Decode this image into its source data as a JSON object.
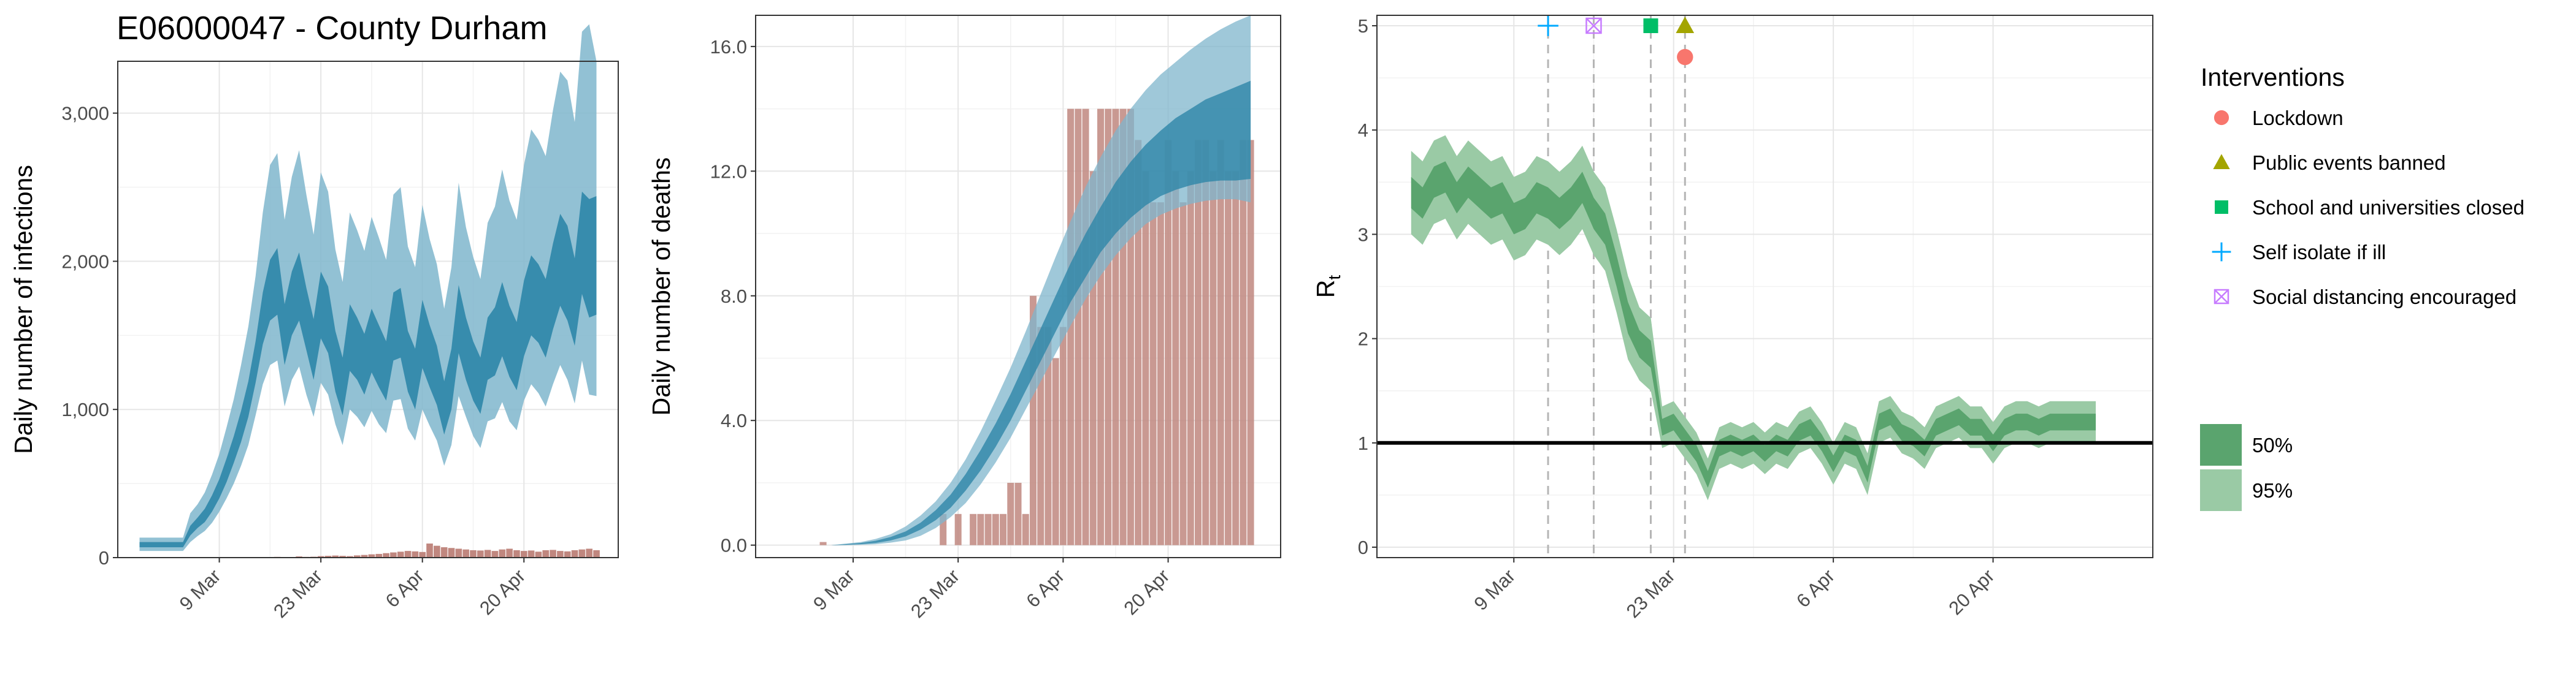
{
  "title": "E06000047 - County Durham",
  "chart_data": [
    {
      "type": "area",
      "ylabel": "Daily number of infections",
      "ylim": [
        0,
        3350
      ],
      "y_ticks": [
        "0",
        "1,000",
        "2,000",
        "3,000"
      ],
      "y_tick_values": [
        0,
        1000,
        2000,
        3000
      ],
      "x_tick_labels": [
        "9 Mar",
        "23 Mar",
        "6 Apr",
        "20 Apr"
      ],
      "x_tick_days": [
        9,
        23,
        37,
        51
      ],
      "xlim": [
        -5,
        64
      ],
      "grid": true,
      "colors": {
        "band95": "#7fb6cc",
        "band50": "#2e86a8",
        "bars": "#c0877f"
      },
      "days": [
        -2,
        -1,
        0,
        1,
        2,
        3,
        4,
        5,
        6,
        7,
        8,
        9,
        10,
        11,
        12,
        13,
        14,
        15,
        16,
        17,
        18,
        19,
        20,
        21,
        22,
        23,
        24,
        25,
        26,
        27,
        28,
        29,
        30,
        31,
        32,
        33,
        34,
        35,
        36,
        37,
        38,
        39,
        40,
        41,
        42,
        43,
        44,
        45,
        46,
        47,
        48,
        49,
        50,
        51,
        52,
        53,
        54,
        55,
        56,
        57,
        58,
        59,
        60,
        61
      ],
      "median": [
        85,
        85,
        85,
        85,
        85,
        85,
        85,
        180,
        230,
        280,
        360,
        460,
        580,
        720,
        880,
        1060,
        1300,
        1600,
        1780,
        1850,
        1500,
        1700,
        1820,
        1600,
        1400,
        1700,
        1600,
        1320,
        1150,
        1480,
        1400,
        1300,
        1450,
        1350,
        1250,
        1550,
        1580,
        1320,
        1200,
        1500,
        1350,
        1220,
        1000,
        1200,
        1600,
        1400,
        1250,
        1150,
        1400,
        1450,
        1600,
        1450,
        1350,
        1600,
        1750,
        1700,
        1600,
        1800,
        2000,
        1900,
        1700,
        2100,
        2000,
        2050
      ],
      "lo50": [
        70,
        70,
        70,
        70,
        70,
        70,
        70,
        150,
        200,
        240,
        310,
        400,
        510,
        640,
        780,
        950,
        1180,
        1440,
        1600,
        1640,
        1300,
        1500,
        1600,
        1400,
        1200,
        1480,
        1380,
        1120,
        960,
        1260,
        1200,
        1100,
        1250,
        1150,
        1060,
        1330,
        1350,
        1120,
        1000,
        1280,
        1150,
        1030,
        830,
        1000,
        1380,
        1200,
        1060,
        970,
        1200,
        1230,
        1360,
        1220,
        1130,
        1360,
        1500,
        1450,
        1350,
        1540,
        1700,
        1600,
        1430,
        1780,
        1620,
        1640
      ],
      "hi50": [
        105,
        105,
        105,
        105,
        105,
        105,
        105,
        215,
        270,
        330,
        420,
        530,
        670,
        820,
        990,
        1190,
        1460,
        1790,
        2010,
        2090,
        1710,
        1930,
        2060,
        1820,
        1610,
        1930,
        1830,
        1530,
        1350,
        1710,
        1620,
        1510,
        1680,
        1570,
        1460,
        1790,
        1820,
        1530,
        1410,
        1740,
        1570,
        1430,
        1190,
        1410,
        1840,
        1620,
        1460,
        1350,
        1620,
        1690,
        1860,
        1700,
        1590,
        1870,
        2040,
        1980,
        1880,
        2120,
        2320,
        2240,
        2020,
        2470,
        2420,
        2440
      ],
      "lo95": [
        45,
        45,
        45,
        45,
        45,
        45,
        45,
        105,
        145,
        180,
        235,
        310,
        400,
        500,
        620,
        760,
        960,
        1170,
        1300,
        1330,
        1020,
        1200,
        1290,
        1100,
        950,
        1180,
        1100,
        900,
        760,
        1000,
        950,
        880,
        990,
        900,
        840,
        1060,
        1070,
        870,
        790,
        1000,
        890,
        790,
        620,
        760,
        1090,
        950,
        820,
        740,
        920,
        940,
        1050,
        920,
        860,
        1060,
        1170,
        1110,
        1020,
        1170,
        1300,
        1200,
        1040,
        1330,
        1100,
        1090
      ],
      "hi95": [
        135,
        135,
        135,
        135,
        135,
        135,
        135,
        300,
        360,
        440,
        560,
        700,
        880,
        1070,
        1300,
        1560,
        1900,
        2330,
        2650,
        2730,
        2280,
        2570,
        2750,
        2450,
        2180,
        2600,
        2470,
        2080,
        1860,
        2330,
        2210,
        2070,
        2300,
        2160,
        2010,
        2450,
        2500,
        2100,
        1960,
        2380,
        2150,
        1980,
        1680,
        1960,
        2530,
        2230,
        2030,
        1880,
        2260,
        2370,
        2620,
        2410,
        2280,
        2650,
        2890,
        2820,
        2710,
        3020,
        3280,
        3220,
        2940,
        3550,
        3600,
        3350
      ],
      "bar_days": [
        13,
        14,
        15,
        16,
        17,
        18,
        19,
        20,
        21,
        22,
        23,
        24,
        25,
        26,
        27,
        28,
        29,
        30,
        31,
        32,
        33,
        34,
        35,
        36,
        37,
        38,
        39,
        40,
        41,
        42,
        43,
        44,
        45,
        46,
        47,
        48,
        49,
        50,
        51,
        52,
        53,
        54,
        55,
        56,
        57,
        58,
        59,
        60,
        61
      ],
      "bar_values": [
        2,
        3,
        4,
        3,
        5,
        2,
        4,
        8,
        5,
        6,
        10,
        12,
        14,
        12,
        10,
        15,
        18,
        22,
        25,
        30,
        35,
        40,
        45,
        42,
        38,
        95,
        80,
        70,
        65,
        60,
        55,
        50,
        48,
        52,
        45,
        55,
        60,
        50,
        45,
        48,
        40,
        50,
        52,
        45,
        42,
        50,
        55,
        60,
        50
      ]
    },
    {
      "type": "area",
      "ylabel": "Daily number of deaths",
      "ylim": [
        -0.4,
        17.0
      ],
      "y_ticks": [
        "0.0",
        "4.0",
        "8.0",
        "12.0",
        "16.0"
      ],
      "y_tick_values": [
        0,
        4,
        8,
        12,
        16
      ],
      "x_tick_labels": [
        "9 Mar",
        "23 Mar",
        "6 Apr",
        "20 Apr"
      ],
      "x_tick_days": [
        9,
        23,
        37,
        51
      ],
      "xlim": [
        -4,
        66
      ],
      "grid": true,
      "colors": {
        "band95": "#7fb6cc",
        "band50": "#2e86a8",
        "bars": "#c0877f"
      },
      "days": [
        6,
        8,
        10,
        12,
        14,
        16,
        18,
        20,
        22,
        24,
        26,
        28,
        30,
        32,
        34,
        36,
        38,
        40,
        42,
        44,
        46,
        48,
        50,
        52,
        54,
        56,
        58,
        60,
        62
      ],
      "median": [
        0.0,
        0.02,
        0.05,
        0.1,
        0.2,
        0.35,
        0.6,
        0.95,
        1.4,
        2.0,
        2.7,
        3.5,
        4.4,
        5.4,
        6.4,
        7.4,
        8.4,
        9.3,
        10.1,
        10.8,
        11.4,
        11.9,
        12.3,
        12.6,
        12.9,
        13.2,
        13.4,
        13.6,
        13.8
      ],
      "lo50": [
        0.0,
        0.01,
        0.03,
        0.07,
        0.15,
        0.28,
        0.5,
        0.8,
        1.2,
        1.75,
        2.4,
        3.15,
        4.0,
        4.95,
        5.9,
        6.85,
        7.8,
        8.6,
        9.4,
        10.0,
        10.5,
        10.9,
        11.2,
        11.4,
        11.55,
        11.65,
        11.7,
        11.7,
        11.75
      ],
      "hi50": [
        0.0,
        0.03,
        0.07,
        0.14,
        0.26,
        0.44,
        0.72,
        1.12,
        1.62,
        2.28,
        3.05,
        3.9,
        4.85,
        5.9,
        6.95,
        8.0,
        9.05,
        10.0,
        10.85,
        11.65,
        12.3,
        12.85,
        13.3,
        13.7,
        14.0,
        14.3,
        14.5,
        14.7,
        14.9
      ],
      "lo95": [
        0.0,
        0.0,
        0.01,
        0.03,
        0.08,
        0.15,
        0.3,
        0.55,
        0.9,
        1.35,
        1.95,
        2.65,
        3.45,
        4.35,
        5.25,
        6.15,
        7.05,
        7.9,
        8.65,
        9.3,
        9.85,
        10.3,
        10.6,
        10.8,
        10.95,
        11.05,
        11.1,
        11.1,
        11.0
      ],
      "hi95": [
        0.0,
        0.05,
        0.1,
        0.2,
        0.35,
        0.6,
        0.95,
        1.4,
        2.0,
        2.75,
        3.65,
        4.65,
        5.7,
        6.85,
        8.05,
        9.25,
        10.4,
        11.5,
        12.45,
        13.3,
        14.0,
        14.6,
        15.1,
        15.5,
        15.9,
        16.25,
        16.55,
        16.8,
        17.0
      ],
      "bar_days": [
        5,
        21,
        23,
        25,
        26,
        27,
        28,
        29,
        30,
        31,
        32,
        33,
        34,
        35,
        36,
        37,
        38,
        39,
        40,
        41,
        42,
        43,
        44,
        45,
        46,
        47,
        48,
        49,
        50,
        51,
        52,
        53,
        54,
        55,
        56,
        57,
        58,
        59,
        60,
        61,
        62
      ],
      "bar_values": [
        0.1,
        1,
        1,
        1,
        1,
        1,
        1,
        1,
        2,
        2,
        1,
        8,
        7,
        7,
        6,
        7,
        14,
        14,
        14,
        12,
        14,
        14,
        14,
        14,
        14,
        13,
        12,
        11,
        11,
        13,
        12,
        11,
        12,
        13,
        13,
        12,
        13,
        12,
        12,
        13,
        13
      ]
    },
    {
      "type": "area",
      "ylabel": "R",
      "ylabel_sub": "t",
      "ylim": [
        -0.1,
        5.1
      ],
      "y_ticks": [
        "0",
        "1",
        "2",
        "3",
        "4",
        "5"
      ],
      "y_tick_values": [
        0,
        1,
        2,
        3,
        4,
        5
      ],
      "x_tick_labels": [
        "9 Mar",
        "23 Mar",
        "6 Apr",
        "20 Apr"
      ],
      "x_tick_days": [
        9,
        23,
        37,
        51
      ],
      "xlim": [
        -3,
        65
      ],
      "reference_line": 1,
      "grid": true,
      "colors": {
        "band50": "#5aa46e",
        "band95": "#9acaa5",
        "ref": "#000000",
        "vline": "#b5b5b5"
      },
      "days": [
        0,
        1,
        2,
        3,
        4,
        5,
        6,
        7,
        8,
        9,
        10,
        11,
        12,
        13,
        14,
        15,
        16,
        17,
        18,
        19,
        20,
        21,
        22,
        23,
        24,
        25,
        26,
        27,
        28,
        29,
        30,
        31,
        32,
        33,
        34,
        35,
        36,
        37,
        38,
        39,
        40,
        41,
        42,
        43,
        44,
        45,
        46,
        47,
        48,
        49,
        50,
        51,
        52,
        53,
        54,
        55,
        56,
        57,
        58,
        59,
        60
      ],
      "median": [
        3.4,
        3.3,
        3.5,
        3.55,
        3.35,
        3.5,
        3.4,
        3.3,
        3.35,
        3.15,
        3.2,
        3.35,
        3.3,
        3.2,
        3.3,
        3.45,
        3.2,
        3.05,
        2.65,
        2.2,
        1.95,
        1.85,
        1.15,
        1.2,
        1.05,
        0.9,
        0.65,
        0.95,
        1.0,
        0.95,
        1.0,
        0.9,
        1.0,
        0.95,
        1.1,
        1.15,
        1.0,
        0.8,
        1.0,
        0.95,
        0.7,
        1.2,
        1.25,
        1.1,
        1.05,
        0.95,
        1.15,
        1.2,
        1.25,
        1.15,
        1.15,
        1.0,
        1.15,
        1.2,
        1.2,
        1.15,
        1.2,
        1.2,
        1.2,
        1.2,
        1.2
      ],
      "lo50": [
        3.25,
        3.15,
        3.35,
        3.4,
        3.2,
        3.35,
        3.25,
        3.15,
        3.2,
        3.0,
        3.05,
        3.2,
        3.15,
        3.05,
        3.15,
        3.3,
        3.05,
        2.9,
        2.5,
        2.05,
        1.82,
        1.72,
        1.07,
        1.12,
        0.97,
        0.82,
        0.57,
        0.87,
        0.92,
        0.87,
        0.92,
        0.82,
        0.92,
        0.87,
        1.02,
        1.07,
        0.92,
        0.72,
        0.92,
        0.87,
        0.62,
        1.12,
        1.17,
        1.02,
        0.97,
        0.87,
        1.07,
        1.12,
        1.17,
        1.07,
        1.07,
        0.92,
        1.07,
        1.12,
        1.12,
        1.07,
        1.12,
        1.12,
        1.12,
        1.12,
        1.12
      ],
      "hi50": [
        3.55,
        3.45,
        3.65,
        3.7,
        3.5,
        3.65,
        3.55,
        3.45,
        3.5,
        3.3,
        3.35,
        3.5,
        3.45,
        3.35,
        3.45,
        3.6,
        3.35,
        3.2,
        2.8,
        2.35,
        2.08,
        1.98,
        1.23,
        1.28,
        1.13,
        0.98,
        0.73,
        1.03,
        1.08,
        1.03,
        1.08,
        0.98,
        1.08,
        1.03,
        1.18,
        1.23,
        1.08,
        0.88,
        1.08,
        1.03,
        0.78,
        1.28,
        1.33,
        1.18,
        1.13,
        1.03,
        1.23,
        1.28,
        1.33,
        1.23,
        1.23,
        1.08,
        1.23,
        1.28,
        1.28,
        1.23,
        1.28,
        1.28,
        1.28,
        1.28,
        1.28
      ],
      "lo95": [
        3.0,
        2.9,
        3.1,
        3.15,
        2.95,
        3.1,
        3.0,
        2.9,
        2.95,
        2.75,
        2.8,
        2.95,
        2.9,
        2.8,
        2.9,
        3.05,
        2.8,
        2.65,
        2.25,
        1.8,
        1.6,
        1.5,
        0.95,
        1.0,
        0.85,
        0.7,
        0.45,
        0.75,
        0.8,
        0.75,
        0.8,
        0.7,
        0.8,
        0.75,
        0.9,
        0.95,
        0.8,
        0.6,
        0.8,
        0.75,
        0.5,
        1.0,
        1.05,
        0.9,
        0.85,
        0.75,
        0.95,
        1.0,
        1.05,
        0.95,
        0.95,
        0.8,
        0.95,
        1.0,
        1.0,
        0.95,
        1.0,
        1.0,
        1.0,
        1.0,
        1.0
      ],
      "hi95": [
        3.8,
        3.7,
        3.9,
        3.95,
        3.75,
        3.9,
        3.8,
        3.7,
        3.75,
        3.55,
        3.6,
        3.75,
        3.7,
        3.6,
        3.7,
        3.85,
        3.6,
        3.45,
        3.05,
        2.6,
        2.3,
        2.2,
        1.35,
        1.4,
        1.25,
        1.1,
        0.85,
        1.15,
        1.2,
        1.15,
        1.2,
        1.1,
        1.2,
        1.15,
        1.3,
        1.35,
        1.2,
        1.0,
        1.2,
        1.15,
        0.9,
        1.4,
        1.45,
        1.3,
        1.25,
        1.15,
        1.35,
        1.4,
        1.45,
        1.35,
        1.35,
        1.2,
        1.35,
        1.4,
        1.4,
        1.35,
        1.4,
        1.4,
        1.4,
        1.4,
        1.4
      ],
      "intervention_markers": [
        {
          "name": "Self isolate if ill",
          "day": 12,
          "y": 5.0,
          "symbol": "plus",
          "color": "#00a9ff"
        },
        {
          "name": "Social distancing encouraged",
          "day": 16,
          "y": 5.0,
          "symbol": "boxx",
          "color": "#c77cff"
        },
        {
          "name": "School and universities closed",
          "day": 21,
          "y": 5.0,
          "symbol": "square",
          "color": "#00be67"
        },
        {
          "name": "Public events banned",
          "day": 24,
          "y": 5.0,
          "symbol": "triangle",
          "color": "#a3a500"
        },
        {
          "name": "Lockdown",
          "day": 24,
          "y": 4.7,
          "symbol": "circle",
          "color": "#f8766d"
        }
      ],
      "intervention_days": [
        12,
        16,
        21,
        24
      ]
    }
  ],
  "legend": {
    "title": "Interventions",
    "items": [
      {
        "label": "Lockdown",
        "symbol": "circle",
        "color": "#f8766d"
      },
      {
        "label": "Public events banned",
        "symbol": "triangle",
        "color": "#a3a500"
      },
      {
        "label": "School and universities closed",
        "symbol": "square",
        "color": "#00be67"
      },
      {
        "label": "Self isolate if ill",
        "symbol": "plus",
        "color": "#00a9ff"
      },
      {
        "label": "Social distancing encouraged",
        "symbol": "boxx",
        "color": "#c77cff"
      }
    ],
    "ci_items": [
      {
        "label": "50%",
        "color": "#5aa46e"
      },
      {
        "label": "95%",
        "color": "#9acaa5"
      }
    ]
  }
}
